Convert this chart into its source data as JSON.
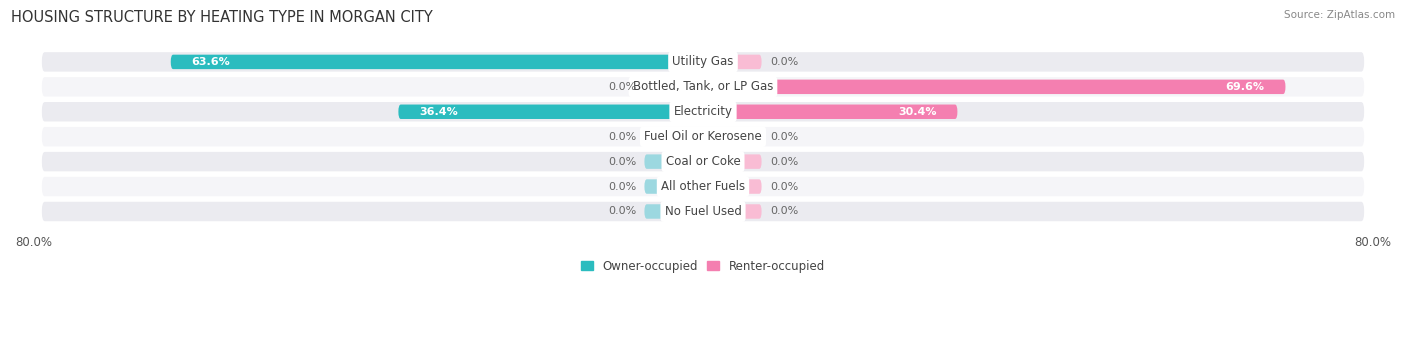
{
  "title": "HOUSING STRUCTURE BY HEATING TYPE IN MORGAN CITY",
  "source": "Source: ZipAtlas.com",
  "categories": [
    "Utility Gas",
    "Bottled, Tank, or LP Gas",
    "Electricity",
    "Fuel Oil or Kerosene",
    "Coal or Coke",
    "All other Fuels",
    "No Fuel Used"
  ],
  "owner_values": [
    63.6,
    0.0,
    36.4,
    0.0,
    0.0,
    0.0,
    0.0
  ],
  "renter_values": [
    0.0,
    69.6,
    30.4,
    0.0,
    0.0,
    0.0,
    0.0
  ],
  "owner_color": "#2bbcbf",
  "renter_color": "#f47fb0",
  "owner_color_light": "#9cd8e0",
  "renter_color_light": "#f9bcd4",
  "row_bg_color": "#ebebf0",
  "row_bg_alt": "#f5f5f8",
  "axis_max": 80.0,
  "placeholder_size": 7.0,
  "title_fontsize": 10.5,
  "cat_fontsize": 8.5,
  "val_fontsize": 8.0,
  "tick_fontsize": 8.5,
  "legend_fontsize": 8.5
}
